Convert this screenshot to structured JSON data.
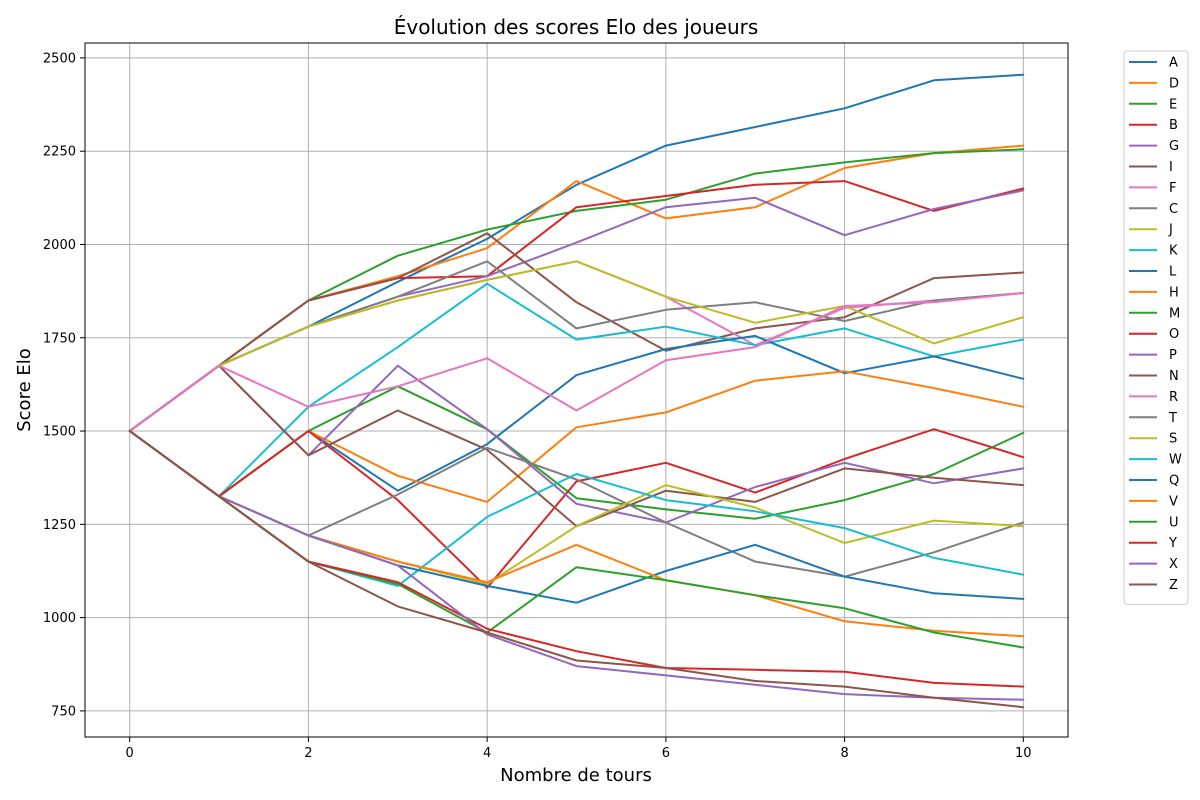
{
  "chart_data": {
    "type": "line",
    "title": "Évolution des scores Elo des joueurs",
    "xlabel": "Nombre de tours",
    "ylabel": "Score Elo",
    "xlim": [
      -0.5,
      10.5
    ],
    "ylim": [
      680,
      2540
    ],
    "xticks": [
      0,
      2,
      4,
      6,
      8,
      10
    ],
    "yticks": [
      750,
      1000,
      1250,
      1500,
      1750,
      2000,
      2250,
      2500
    ],
    "grid": true,
    "legend_position": "outside-right",
    "x": [
      0,
      1,
      2,
      3,
      4,
      5,
      6,
      7,
      8,
      9,
      10
    ],
    "series": [
      {
        "name": "A",
        "color": "#1f77b4",
        "values": [
          1500,
          1675,
          1780,
          1900,
          2015,
          2160,
          2265,
          2315,
          2365,
          2440,
          2455
        ]
      },
      {
        "name": "D",
        "color": "#ff7f0e",
        "values": [
          1500,
          1675,
          1850,
          1915,
          1990,
          2170,
          2070,
          2100,
          2205,
          2245,
          2265
        ]
      },
      {
        "name": "E",
        "color": "#2ca02c",
        "values": [
          1500,
          1675,
          1850,
          1970,
          2040,
          2090,
          2120,
          2190,
          2220,
          2245,
          2255
        ]
      },
      {
        "name": "B",
        "color": "#d62728",
        "values": [
          1500,
          1675,
          1850,
          1910,
          1915,
          2100,
          2130,
          2160,
          2170,
          2090,
          2150
        ]
      },
      {
        "name": "G",
        "color": "#9467bd",
        "values": [
          1500,
          1675,
          1780,
          1860,
          1915,
          2005,
          2100,
          2125,
          2025,
          2095,
          2145
        ]
      },
      {
        "name": "I",
        "color": "#8c564b",
        "values": [
          1500,
          1675,
          1850,
          1910,
          2030,
          1845,
          1715,
          1775,
          1805,
          1910,
          1925
        ]
      },
      {
        "name": "F",
        "color": "#e377c2",
        "values": [
          1500,
          1675,
          1780,
          1850,
          1905,
          1955,
          1860,
          1730,
          1830,
          1850,
          1870
        ]
      },
      {
        "name": "C",
        "color": "#7f7f7f",
        "values": [
          1500,
          1675,
          1780,
          1860,
          1955,
          1775,
          1825,
          1845,
          1795,
          1850,
          1870
        ]
      },
      {
        "name": "J",
        "color": "#bcbd22",
        "values": [
          1500,
          1675,
          1780,
          1850,
          1905,
          1955,
          1860,
          1790,
          1835,
          1735,
          1805
        ]
      },
      {
        "name": "K",
        "color": "#17becf",
        "values": [
          1500,
          1325,
          1565,
          1725,
          1895,
          1745,
          1780,
          1730,
          1775,
          1700,
          1745
        ]
      },
      {
        "name": "L",
        "color": "#1f77b4",
        "values": [
          1500,
          1325,
          1500,
          1340,
          1465,
          1650,
          1720,
          1755,
          1655,
          1700,
          1640
        ]
      },
      {
        "name": "H",
        "color": "#ff7f0e",
        "values": [
          1500,
          1325,
          1500,
          1380,
          1310,
          1510,
          1550,
          1635,
          1660,
          1615,
          1565
        ]
      },
      {
        "name": "M",
        "color": "#2ca02c",
        "values": [
          1500,
          1325,
          1500,
          1620,
          1505,
          1320,
          1290,
          1265,
          1315,
          1385,
          1495
        ]
      },
      {
        "name": "O",
        "color": "#d62728",
        "values": [
          1500,
          1325,
          1500,
          1315,
          1080,
          1365,
          1415,
          1335,
          1425,
          1505,
          1430
        ]
      },
      {
        "name": "P",
        "color": "#9467bd",
        "values": [
          1500,
          1675,
          1435,
          1675,
          1505,
          1305,
          1255,
          1350,
          1415,
          1360,
          1400
        ]
      },
      {
        "name": "N",
        "color": "#8c564b",
        "values": [
          1500,
          1675,
          1435,
          1555,
          1450,
          1245,
          1340,
          1310,
          1400,
          1375,
          1355
        ]
      },
      {
        "name": "R",
        "color": "#e377c2",
        "values": [
          1500,
          1675,
          1565,
          1620,
          1695,
          1555,
          1690,
          1725,
          1835,
          1845,
          1870
        ]
      },
      {
        "name": "T",
        "color": "#7f7f7f",
        "values": [
          1500,
          1325,
          1220,
          1330,
          1455,
          1370,
          1255,
          1150,
          1110,
          1175,
          1255
        ]
      },
      {
        "name": "S",
        "color": "#bcbd22",
        "values": [
          1500,
          1325,
          1220,
          1150,
          1090,
          1245,
          1355,
          1295,
          1200,
          1260,
          1245
        ]
      },
      {
        "name": "W",
        "color": "#17becf",
        "values": [
          1500,
          1325,
          1150,
          1085,
          1270,
          1385,
          1315,
          1285,
          1240,
          1160,
          1115
        ]
      },
      {
        "name": "Q",
        "color": "#1f77b4",
        "values": [
          1500,
          1325,
          1220,
          1140,
          1085,
          1040,
          1125,
          1195,
          1110,
          1065,
          1050
        ]
      },
      {
        "name": "V",
        "color": "#ff7f0e",
        "values": [
          1500,
          1325,
          1220,
          1150,
          1095,
          1195,
          1100,
          1060,
          990,
          965,
          950
        ]
      },
      {
        "name": "U",
        "color": "#2ca02c",
        "values": [
          1500,
          1325,
          1150,
          1090,
          960,
          1135,
          1100,
          1060,
          1025,
          960,
          920
        ]
      },
      {
        "name": "Y",
        "color": "#d62728",
        "values": [
          1500,
          1325,
          1150,
          1095,
          970,
          910,
          865,
          860,
          855,
          825,
          815
        ]
      },
      {
        "name": "X",
        "color": "#9467bd",
        "values": [
          1500,
          1325,
          1220,
          1140,
          955,
          870,
          845,
          820,
          795,
          785,
          780
        ]
      },
      {
        "name": "Z",
        "color": "#8c564b",
        "values": [
          1500,
          1325,
          1150,
          1030,
          960,
          885,
          865,
          830,
          815,
          785,
          760
        ]
      }
    ]
  }
}
